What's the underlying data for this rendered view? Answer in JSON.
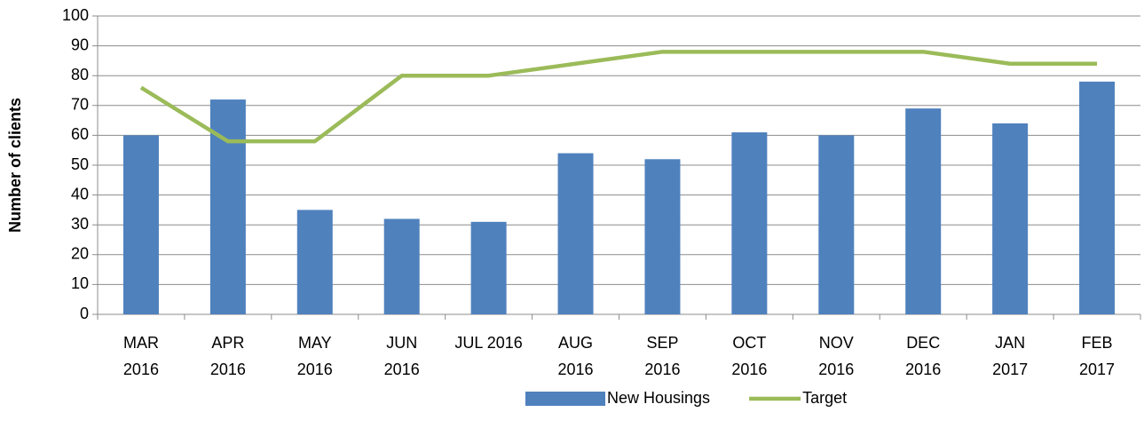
{
  "chart_data": {
    "type": "bar_line",
    "y_label": "Number of clients",
    "categories": [
      "MAR 2016",
      "APR 2016",
      "MAY 2016",
      "JUN 2016",
      "JUL 2016",
      "AUG 2016",
      "SEP 2016",
      "OCT 2016",
      "NOV 2016",
      "DEC 2016",
      "JAN 2017",
      "FEB 2017"
    ],
    "series": [
      {
        "name": "New Housings",
        "type": "bar",
        "color": "#4f81bd",
        "values": [
          60,
          72,
          35,
          32,
          31,
          54,
          52,
          61,
          60,
          69,
          64,
          78
        ]
      },
      {
        "name": "Target",
        "type": "line",
        "color": "#9bbb59",
        "values": [
          76,
          58,
          58,
          80,
          80,
          84,
          88,
          88,
          88,
          88,
          84,
          84
        ]
      }
    ],
    "ylim": [
      0,
      100
    ],
    "yticks": [
      0,
      10,
      20,
      30,
      40,
      50,
      60,
      70,
      80,
      90,
      100
    ],
    "grid": true,
    "legend": "bottom"
  }
}
